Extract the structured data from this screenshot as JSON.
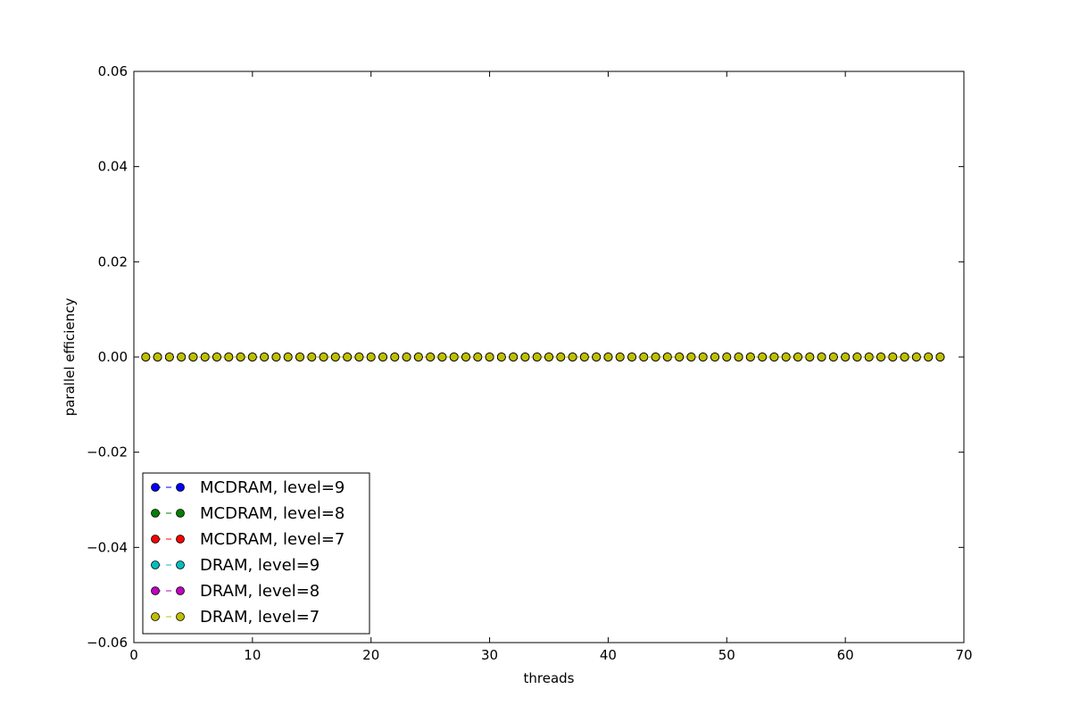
{
  "chart_data": {
    "type": "line",
    "title": "",
    "xlabel": "threads",
    "ylabel": "parallel efficiency",
    "xlim": [
      0,
      70
    ],
    "ylim": [
      -0.06,
      0.06
    ],
    "xticks": [
      0,
      10,
      20,
      30,
      40,
      50,
      60,
      70
    ],
    "yticks": [
      0.06,
      0.04,
      0.02,
      0.0,
      -0.02,
      -0.04,
      -0.06
    ],
    "xtick_labels": [
      "0",
      "10",
      "20",
      "30",
      "40",
      "50",
      "60",
      "70"
    ],
    "ytick_labels": [
      "0.06",
      "0.04",
      "0.02",
      "0.00",
      "−0.02",
      "−0.04",
      "−0.06"
    ],
    "grid": false,
    "legend_position": "lower-left",
    "x": [
      1,
      2,
      3,
      4,
      5,
      6,
      7,
      8,
      9,
      10,
      11,
      12,
      13,
      14,
      15,
      16,
      17,
      18,
      19,
      20,
      21,
      22,
      23,
      24,
      25,
      26,
      27,
      28,
      29,
      30,
      31,
      32,
      33,
      34,
      35,
      36,
      37,
      38,
      39,
      40,
      41,
      42,
      43,
      44,
      45,
      46,
      47,
      48,
      49,
      50,
      51,
      52,
      53,
      54,
      55,
      56,
      57,
      58,
      59,
      60,
      61,
      62,
      63,
      64,
      65,
      66,
      67,
      68
    ],
    "series": [
      {
        "name": "MCDRAM, level=9",
        "color": "#0000ff",
        "values": [
          0,
          0,
          0,
          0,
          0,
          0,
          0,
          0,
          0,
          0,
          0,
          0,
          0,
          0,
          0,
          0,
          0,
          0,
          0,
          0,
          0,
          0,
          0,
          0,
          0,
          0,
          0,
          0,
          0,
          0,
          0,
          0,
          0,
          0,
          0,
          0,
          0,
          0,
          0,
          0,
          0,
          0,
          0,
          0,
          0,
          0,
          0,
          0,
          0,
          0,
          0,
          0,
          0,
          0,
          0,
          0,
          0,
          0,
          0,
          0,
          0,
          0,
          0,
          0,
          0,
          0,
          0,
          0
        ]
      },
      {
        "name": "MCDRAM, level=8",
        "color": "#008000",
        "values": [
          0,
          0,
          0,
          0,
          0,
          0,
          0,
          0,
          0,
          0,
          0,
          0,
          0,
          0,
          0,
          0,
          0,
          0,
          0,
          0,
          0,
          0,
          0,
          0,
          0,
          0,
          0,
          0,
          0,
          0,
          0,
          0,
          0,
          0,
          0,
          0,
          0,
          0,
          0,
          0,
          0,
          0,
          0,
          0,
          0,
          0,
          0,
          0,
          0,
          0,
          0,
          0,
          0,
          0,
          0,
          0,
          0,
          0,
          0,
          0,
          0,
          0,
          0,
          0,
          0,
          0,
          0,
          0
        ]
      },
      {
        "name": "MCDRAM, level=7",
        "color": "#ff0000",
        "values": [
          0,
          0,
          0,
          0,
          0,
          0,
          0,
          0,
          0,
          0,
          0,
          0,
          0,
          0,
          0,
          0,
          0,
          0,
          0,
          0,
          0,
          0,
          0,
          0,
          0,
          0,
          0,
          0,
          0,
          0,
          0,
          0,
          0,
          0,
          0,
          0,
          0,
          0,
          0,
          0,
          0,
          0,
          0,
          0,
          0,
          0,
          0,
          0,
          0,
          0,
          0,
          0,
          0,
          0,
          0,
          0,
          0,
          0,
          0,
          0,
          0,
          0,
          0,
          0,
          0,
          0,
          0,
          0
        ]
      },
      {
        "name": "DRAM, level=9",
        "color": "#00bfbf",
        "values": [
          0,
          0,
          0,
          0,
          0,
          0,
          0,
          0,
          0,
          0,
          0,
          0,
          0,
          0,
          0,
          0,
          0,
          0,
          0,
          0,
          0,
          0,
          0,
          0,
          0,
          0,
          0,
          0,
          0,
          0,
          0,
          0,
          0,
          0,
          0,
          0,
          0,
          0,
          0,
          0,
          0,
          0,
          0,
          0,
          0,
          0,
          0,
          0,
          0,
          0,
          0,
          0,
          0,
          0,
          0,
          0,
          0,
          0,
          0,
          0,
          0,
          0,
          0,
          0,
          0,
          0,
          0,
          0
        ]
      },
      {
        "name": "DRAM, level=8",
        "color": "#bf00bf",
        "values": [
          0,
          0,
          0,
          0,
          0,
          0,
          0,
          0,
          0,
          0,
          0,
          0,
          0,
          0,
          0,
          0,
          0,
          0,
          0,
          0,
          0,
          0,
          0,
          0,
          0,
          0,
          0,
          0,
          0,
          0,
          0,
          0,
          0,
          0,
          0,
          0,
          0,
          0,
          0,
          0,
          0,
          0,
          0,
          0,
          0,
          0,
          0,
          0,
          0,
          0,
          0,
          0,
          0,
          0,
          0,
          0,
          0,
          0,
          0,
          0,
          0,
          0,
          0,
          0,
          0,
          0,
          0,
          0
        ]
      },
      {
        "name": "DRAM, level=7",
        "color": "#bfbf00",
        "values": [
          0,
          0,
          0,
          0,
          0,
          0,
          0,
          0,
          0,
          0,
          0,
          0,
          0,
          0,
          0,
          0,
          0,
          0,
          0,
          0,
          0,
          0,
          0,
          0,
          0,
          0,
          0,
          0,
          0,
          0,
          0,
          0,
          0,
          0,
          0,
          0,
          0,
          0,
          0,
          0,
          0,
          0,
          0,
          0,
          0,
          0,
          0,
          0,
          0,
          0,
          0,
          0,
          0,
          0,
          0,
          0,
          0,
          0,
          0,
          0,
          0,
          0,
          0,
          0,
          0,
          0,
          0,
          0
        ]
      }
    ]
  }
}
